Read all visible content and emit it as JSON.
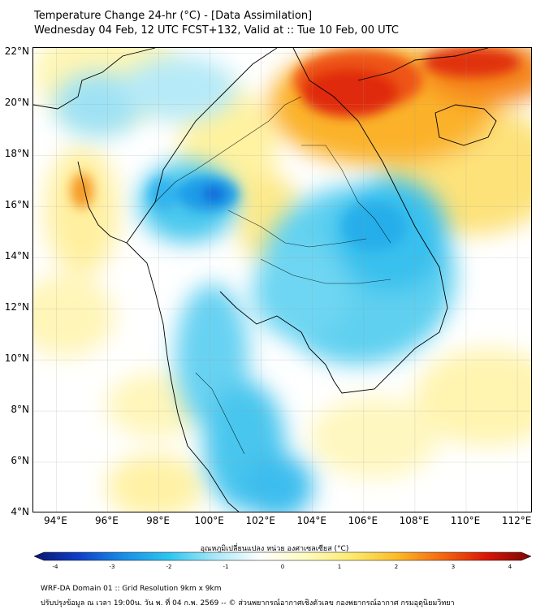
{
  "header": {
    "title_line1": "Temperature Change 24-hr (°C) - [Data Assimilation]",
    "title_line2": "Wednesday 04 Feb, 12 UTC FCST+132, Valid at :: Tue 10 Feb, 00 UTC"
  },
  "map": {
    "lat_labels": [
      "22°N",
      "20°N",
      "18°N",
      "16°N",
      "14°N",
      "12°N",
      "10°N",
      "8°N",
      "6°N",
      "4°N"
    ],
    "lon_labels": [
      "94°E",
      "96°E",
      "98°E",
      "100°E",
      "102°E",
      "104°E",
      "106°E",
      "108°E",
      "110°E",
      "112°E"
    ],
    "lat_range": [
      4,
      22.2
    ],
    "lon_range": [
      93.1,
      112.6
    ],
    "gridlines": true,
    "anomaly_regions": [
      {
        "label": "northern Vietnam / southern China warm core",
        "lon": 106.3,
        "lat": 21.3,
        "value": 3.5
      },
      {
        "label": "northeast warm",
        "lon": 110.5,
        "lat": 21.6,
        "value": 3.2
      },
      {
        "label": "Andaman warm spot",
        "lon": 95.2,
        "lat": 16.5,
        "value": 2.6
      },
      {
        "label": "central Thailand cold core",
        "lon": 100.1,
        "lat": 16.3,
        "value": -2.3
      },
      {
        "label": "Laos / Cambodia cold",
        "lon": 104.5,
        "lat": 13.5,
        "value": -1.3
      },
      {
        "label": "southern peninsula cold",
        "lon": 101.5,
        "lat": 5.2,
        "value": -1.5
      }
    ]
  },
  "colorbar": {
    "label": "อุณหภูมิเปลี่ยนแปลง หน่วย องศาเซลเซียส (°C)",
    "ticks": [
      "-4",
      "-3",
      "-2",
      "-1",
      "0",
      "1",
      "2",
      "3",
      "4"
    ],
    "range": [
      -4,
      4
    ],
    "colors": [
      "#0a1670",
      "#1040c8",
      "#1a8fe6",
      "#2ec6f0",
      "#a8e8f8",
      "#ffffff",
      "#fffbc2",
      "#fdeb70",
      "#fcbd2a",
      "#f56a10",
      "#d81808",
      "#7a0605"
    ]
  },
  "footer": {
    "line1": "WRF-DA Domain 01 :: Grid Resolution 9km x 9km",
    "line2": "ปรับปรุงข้อมูล ณ เวลา 19:00น. วัน พ. ที่ 04 ก.พ. 2569 -- © ส่วนพยากรณ์อากาศเชิงตัวเลข กองพยากรณ์อากาศ กรมอุตุนิยมวิทยา"
  }
}
